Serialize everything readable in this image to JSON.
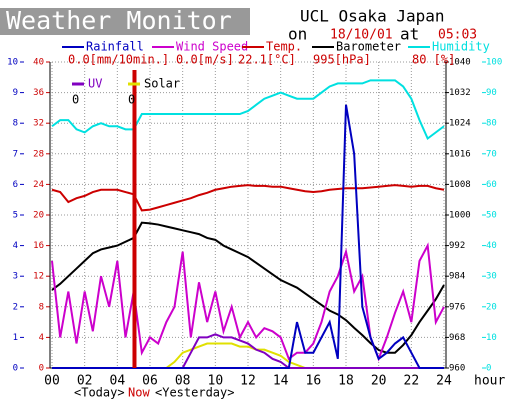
{
  "chart_data": {
    "type": "line",
    "title": "Weather Monitor",
    "station": "UCL Osaka Japan",
    "on_label": "on",
    "date": "18/10/01",
    "at_label": "at",
    "time": "05:03",
    "x_label": "hour",
    "today_label": "<Today>",
    "now_label": "Now",
    "yesterday_label": "<Yesterday>",
    "x": [
      0,
      0.5,
      1,
      1.5,
      2,
      2.5,
      3,
      3.5,
      4,
      4.5,
      5,
      5.5,
      6,
      6.5,
      7,
      7.5,
      8,
      8.5,
      9,
      9.5,
      10,
      10.5,
      11,
      11.5,
      12,
      12.5,
      13,
      13.5,
      14,
      14.5,
      15,
      15.5,
      16,
      16.5,
      17,
      17.5,
      18,
      18.5,
      19,
      19.5,
      20,
      20.5,
      21,
      21.5,
      22,
      22.5,
      23,
      23.5,
      24
    ],
    "xlim": [
      0,
      24
    ],
    "xticks": [
      {
        "value": 0,
        "label": "00"
      },
      {
        "value": 2,
        "label": "02"
      },
      {
        "value": 4,
        "label": "04"
      },
      {
        "value": 6,
        "label": "06"
      },
      {
        "value": 8,
        "label": "08"
      },
      {
        "value": 10,
        "label": "10"
      },
      {
        "value": 12,
        "label": "12"
      },
      {
        "value": 14,
        "label": "14"
      },
      {
        "value": 16,
        "label": "16"
      },
      {
        "value": 18,
        "label": "18"
      },
      {
        "value": 20,
        "label": "20"
      },
      {
        "value": 22,
        "label": "22"
      },
      {
        "value": 24,
        "label": "24"
      }
    ],
    "ylim": [
      0,
      10
    ],
    "yticks": [
      0,
      1,
      2,
      3,
      4,
      5,
      6,
      7,
      8,
      9,
      10
    ],
    "y2lim": [
      0,
      40
    ],
    "y2ticks": [
      0,
      4,
      8,
      12,
      16,
      20,
      24,
      28,
      32,
      36,
      40
    ],
    "y3lim": [
      960,
      1040
    ],
    "y3ticks": [
      960,
      968,
      976,
      984,
      992,
      1000,
      1008,
      1016,
      1024,
      1032,
      1040
    ],
    "y4lim": [
      0,
      100
    ],
    "y4ticks": [
      0,
      10,
      20,
      30,
      40,
      50,
      60,
      70,
      80,
      90,
      100
    ],
    "grid": true,
    "series": [
      {
        "name": "Rainfall",
        "color": "#0000c0",
        "axis": "y",
        "reading": "0.0[mm/10min.]",
        "values": [
          0,
          0,
          0,
          0,
          0,
          0,
          0,
          0,
          0,
          0,
          0,
          0,
          0,
          0,
          0,
          0,
          0,
          0,
          0,
          0,
          0,
          0,
          0,
          0,
          0,
          0,
          0,
          0,
          0,
          0,
          1.5,
          0.5,
          0.5,
          1,
          1.5,
          0.3,
          8.6,
          7,
          2,
          1,
          0.3,
          0.5,
          0.8,
          1,
          0.5,
          0,
          0,
          0,
          0
        ]
      },
      {
        "name": "Wind Speed",
        "color": "#cc00cc",
        "axis": "y",
        "reading": "0.0[m/s]",
        "values": [
          3.5,
          1,
          2.5,
          0.8,
          2.5,
          1.2,
          3,
          2,
          3.5,
          1,
          2.5,
          0.5,
          1,
          0.8,
          1.5,
          2,
          3.8,
          1,
          2.8,
          1.5,
          2.5,
          1.2,
          2,
          1,
          1.5,
          1,
          1.3,
          1.2,
          1,
          0.3,
          0.5,
          0.5,
          0.8,
          1.5,
          2.5,
          3,
          3.8,
          2.5,
          3,
          1,
          0.3,
          1,
          1.8,
          2.5,
          1.5,
          3.5,
          4,
          1.5,
          2
        ]
      },
      {
        "name": "Temp.",
        "color": "#cc0000",
        "axis": "y2",
        "reading": "22.1[°C]",
        "values": [
          23.3,
          23,
          21.7,
          22.2,
          22.5,
          23,
          23.3,
          23.3,
          23.3,
          23,
          22.7,
          20.6,
          20.7,
          21,
          21.3,
          21.6,
          21.9,
          22.2,
          22.6,
          22.9,
          23.3,
          23.5,
          23.7,
          23.8,
          23.9,
          23.8,
          23.8,
          23.7,
          23.7,
          23.5,
          23.3,
          23.1,
          23,
          23.1,
          23.3,
          23.4,
          23.5,
          23.5,
          23.5,
          23.6,
          23.7,
          23.8,
          23.9,
          23.8,
          23.7,
          23.8,
          23.8,
          23.5,
          23.3
        ]
      },
      {
        "name": "Barometer",
        "color": "#000000",
        "axis": "y3",
        "reading": "995[hPa]",
        "values": [
          980.4,
          982,
          984,
          986,
          988,
          990,
          991,
          991.5,
          992,
          993,
          994,
          998,
          997.8,
          997.5,
          997,
          996.5,
          996,
          995.5,
          995,
          994,
          993.5,
          992,
          991,
          990,
          989,
          987.5,
          986,
          984.5,
          983,
          982,
          981,
          979.5,
          978,
          976.5,
          975,
          974,
          972.5,
          970.5,
          968.6,
          966.5,
          964.7,
          964,
          964,
          966,
          968.6,
          972,
          975,
          978,
          981.7
        ]
      },
      {
        "name": "Humidity",
        "color": "#00e0e0",
        "axis": "y4",
        "reading": "80 [%]",
        "values": [
          79,
          81,
          81,
          78,
          77,
          79,
          80,
          79,
          79,
          78,
          78,
          83,
          83,
          83,
          83,
          83,
          83,
          83,
          83,
          83,
          83,
          83,
          83,
          83,
          84,
          86,
          88,
          89,
          90,
          89,
          88,
          88,
          88,
          90,
          92,
          93,
          93,
          93,
          93,
          94,
          94,
          94,
          94,
          92,
          88,
          81,
          75,
          77,
          79
        ]
      },
      {
        "name": "UV",
        "color": "#8000c0",
        "axis": "y",
        "reading": "0",
        "values": [
          0,
          0,
          0,
          0,
          0,
          0,
          0,
          0,
          0,
          0,
          0,
          0,
          0,
          0,
          0,
          0,
          0,
          0.5,
          1,
          1,
          1.1,
          1,
          1,
          0.9,
          0.8,
          0.6,
          0.5,
          0.3,
          0.2,
          0,
          0,
          0,
          0,
          0,
          0,
          0,
          0,
          0,
          0,
          0,
          0,
          0,
          0,
          0,
          0,
          0,
          0,
          0,
          0
        ]
      },
      {
        "name": "Solar",
        "color": "#e0e000",
        "axis": "y",
        "reading": "0",
        "values": [
          0,
          0,
          0,
          0,
          0,
          0,
          0,
          0,
          0,
          0,
          0,
          0,
          0,
          0,
          0,
          0.2,
          0.5,
          0.6,
          0.7,
          0.8,
          0.8,
          0.8,
          0.8,
          0.7,
          0.7,
          0.6,
          0.6,
          0.5,
          0.4,
          0.2,
          0.1,
          0,
          0,
          0,
          0,
          0,
          0,
          0,
          0,
          0,
          0,
          0,
          0,
          0,
          0,
          0,
          0,
          0,
          0
        ]
      }
    ]
  }
}
